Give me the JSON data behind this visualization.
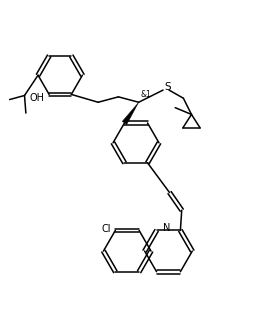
{
  "bg_color": "#ffffff",
  "line_color": "#000000",
  "line_width": 1.1,
  "figsize": [
    2.72,
    3.29
  ],
  "dpi": 100,
  "xlim": [
    0,
    10
  ],
  "ylim": [
    0,
    12
  ]
}
